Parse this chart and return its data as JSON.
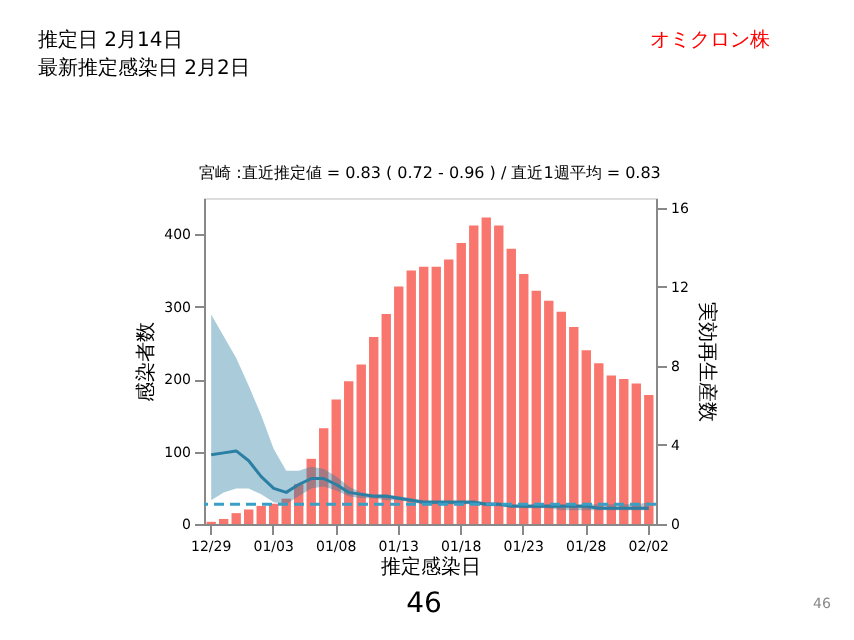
{
  "chart_data": {
    "type": "bar",
    "title": "宮崎 :直近推定値 = 0.83 ( 0.72 - 0.96 ) / 直近1週平均 = 0.83",
    "subtitle": [
      "推定日  2月14日",
      "最新推定感染日  2月2日"
    ],
    "annotations": [
      "オミクロン株",
      "46",
      "46"
    ],
    "xlabel": "推定感染日",
    "ylabel": "感染者数",
    "y2label": "実効再生産数",
    "categories": [
      "12/29",
      null,
      null,
      null,
      null,
      "01/03",
      null,
      null,
      null,
      null,
      "01/08",
      null,
      null,
      null,
      null,
      "01/13",
      null,
      null,
      null,
      null,
      "01/18",
      null,
      null,
      null,
      null,
      "01/23",
      null,
      null,
      null,
      null,
      "01/28",
      null,
      null,
      null,
      null,
      "02/02"
    ],
    "series": [
      {
        "color": "#f8766d",
        "values": [
          3,
          7,
          15,
          20,
          25,
          28,
          35,
          55,
          90,
          132,
          172,
          197,
          220,
          258,
          290,
          328,
          350,
          355,
          355,
          365,
          388,
          412,
          423,
          412,
          380,
          345,
          322,
          308,
          293,
          272,
          240,
          222,
          205,
          200,
          194,
          178
        ]
      },
      {
        "type": "line",
        "axis": "y2",
        "color": "#2b7fa3",
        "values": [
          3.5,
          3.6,
          3.7,
          3.2,
          2.4,
          1.8,
          1.6,
          2.0,
          2.3,
          2.3,
          2.0,
          1.6,
          1.5,
          1.4,
          1.4,
          1.3,
          1.2,
          1.1,
          1.1,
          1.1,
          1.1,
          1.1,
          1.0,
          1.0,
          0.9,
          0.9,
          0.9,
          0.9,
          0.9,
          0.9,
          0.9,
          0.8,
          0.8,
          0.8,
          0.8,
          0.8
        ],
        "lower": [
          1.2,
          1.6,
          1.8,
          1.8,
          1.5,
          1.1,
          1.0,
          1.4,
          1.8,
          1.9,
          1.7,
          1.4,
          1.3,
          1.3,
          1.2,
          1.2,
          1.1,
          1.0,
          1.0,
          1.0,
          1.0,
          1.0,
          0.9,
          0.9,
          0.9,
          0.8,
          0.8,
          0.8,
          0.7,
          0.7,
          0.7,
          0.7,
          0.7,
          0.7,
          0.7,
          0.7
        ],
        "upper": [
          10.6,
          9.5,
          8.4,
          7,
          5.5,
          3.8,
          2.7,
          2.7,
          2.9,
          2.8,
          2.4,
          1.9,
          1.6,
          1.5,
          1.5,
          1.4,
          1.3,
          1.2,
          1.2,
          1.2,
          1.2,
          1.2,
          1.1,
          1.1,
          1.0,
          1.0,
          1.0,
          1.0,
          1.0,
          1.0,
          1.0,
          1.0,
          1.0,
          1.0,
          1.0,
          1.1
        ]
      }
    ],
    "ylim": [
      0,
      450
    ],
    "yticks": [
      0,
      100,
      200,
      300,
      400
    ],
    "y2lim": [
      0,
      16.5
    ],
    "y2ticks": [
      0,
      4,
      8,
      12,
      16
    ],
    "ref_lines": [
      {
        "axis": "y2",
        "value": 1,
        "color": "#3a9fc4",
        "line_style": "dashed"
      }
    ],
    "grid": false
  }
}
